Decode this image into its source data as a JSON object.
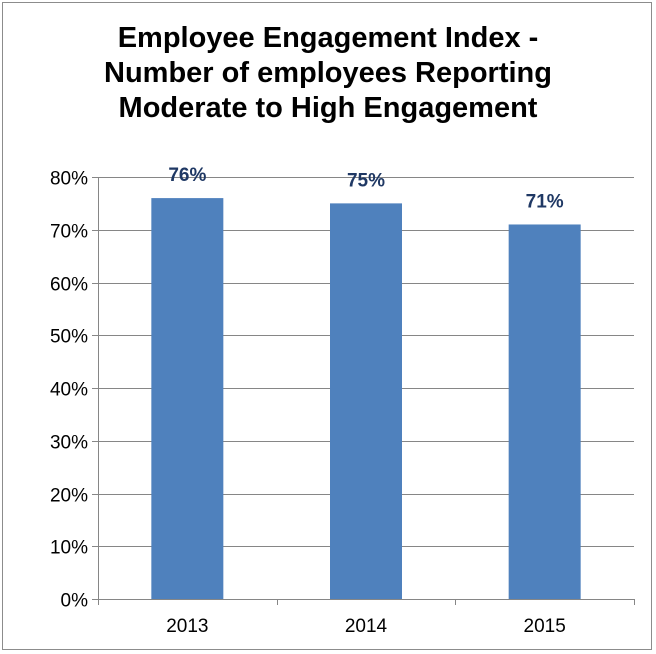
{
  "chart_data": {
    "type": "bar",
    "title_lines": [
      "Employee Engagement Index -",
      "Number of employees Reporting",
      "Moderate to High Engagement"
    ],
    "categories": [
      "2013",
      "2014",
      "2015"
    ],
    "values": [
      76,
      75,
      71
    ],
    "data_labels": [
      "76%",
      "75%",
      "71%"
    ],
    "y_ticks": [
      0,
      10,
      20,
      30,
      40,
      50,
      60,
      70,
      80
    ],
    "y_tick_labels": [
      "0%",
      "10%",
      "20%",
      "30%",
      "40%",
      "50%",
      "60%",
      "70%",
      "80%"
    ],
    "ylim": [
      0,
      80
    ],
    "grid": true,
    "legend": "none",
    "bar_color": "#4f81bd",
    "data_label_color": "#1f3864",
    "gridline_color": "#868686"
  }
}
